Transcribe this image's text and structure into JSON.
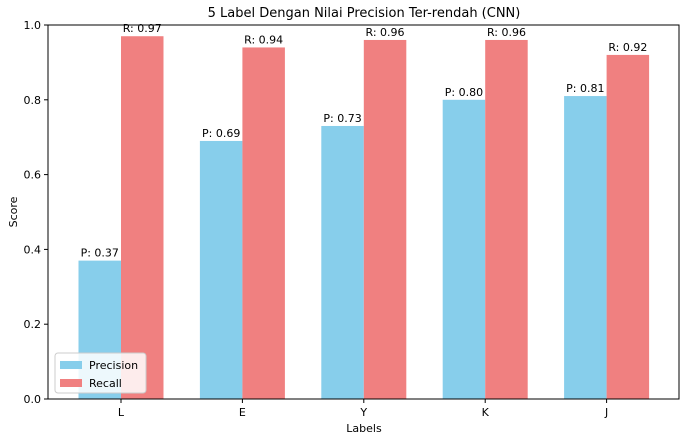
{
  "chart_data": {
    "type": "bar",
    "title": "5 Label Dengan Nilai Precision Ter-rendah (CNN)",
    "xlabel": "Labels",
    "ylabel": "Score",
    "ylim": [
      0,
      1.0
    ],
    "yticks": [
      "0.0",
      "0.2",
      "0.4",
      "0.6",
      "0.8",
      "1.0"
    ],
    "ytick_values": [
      0,
      0.2,
      0.4,
      0.6,
      0.8,
      1.0
    ],
    "categories": [
      "L",
      "E",
      "Y",
      "K",
      "J"
    ],
    "series": [
      {
        "name": "Precision",
        "color": "#87ceeb",
        "values": [
          0.37,
          0.69,
          0.73,
          0.8,
          0.81
        ],
        "labels": [
          "P: 0.37",
          "P: 0.69",
          "P: 0.73",
          "P: 0.80",
          "P: 0.81"
        ]
      },
      {
        "name": "Recall",
        "color": "#f08080",
        "values": [
          0.97,
          0.94,
          0.96,
          0.96,
          0.92
        ],
        "labels": [
          "R: 0.97",
          "R: 0.94",
          "R: 0.96",
          "R: 0.96",
          "R: 0.92"
        ]
      }
    ],
    "grid": false,
    "legend_position": "lower-left"
  }
}
